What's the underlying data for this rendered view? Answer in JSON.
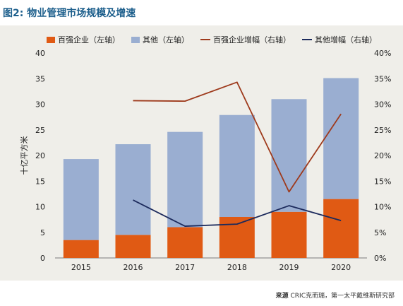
{
  "title": "图2: 物业管理市场规模及增速",
  "source": {
    "label": "来源",
    "text": "CRIC克而瑞，第一太平戴维斯研究部"
  },
  "colors": {
    "top100": "#e05a14",
    "other": "#9aaed1",
    "top100_growth": "#9e3a1c",
    "other_growth": "#1c2a5c"
  },
  "chart_data": {
    "type": "bar",
    "stacked": true,
    "categories": [
      "2015",
      "2016",
      "2017",
      "2018",
      "2019",
      "2020"
    ],
    "series": [
      {
        "name": "百强企业（左轴）",
        "kind": "bar",
        "axis": "left",
        "values": [
          3.5,
          4.5,
          6.0,
          8.0,
          9.0,
          11.5
        ]
      },
      {
        "name": "其他（左轴）",
        "kind": "bar",
        "axis": "left",
        "values": [
          15.8,
          17.7,
          18.6,
          19.9,
          22.0,
          23.6
        ]
      },
      {
        "name": "百强企业增幅（右轴）",
        "kind": "line",
        "axis": "right",
        "values": [
          null,
          30.7,
          30.6,
          34.3,
          12.9,
          28.1
        ]
      },
      {
        "name": "其他增幅（右轴）",
        "kind": "line",
        "axis": "right",
        "values": [
          null,
          11.3,
          6.2,
          6.6,
          10.2,
          7.3
        ]
      }
    ],
    "ylabel": "十亿平方米",
    "ylim": [
      0,
      40
    ],
    "yticks": [
      "0",
      "5",
      "10",
      "15",
      "20",
      "25",
      "30",
      "35",
      "40"
    ],
    "y2lim": [
      0,
      40
    ],
    "y2ticks": [
      "0%",
      "5%",
      "10%",
      "15%",
      "20%",
      "25%",
      "30%",
      "35%",
      "40%"
    ],
    "legend_position": "top",
    "grid": false
  }
}
